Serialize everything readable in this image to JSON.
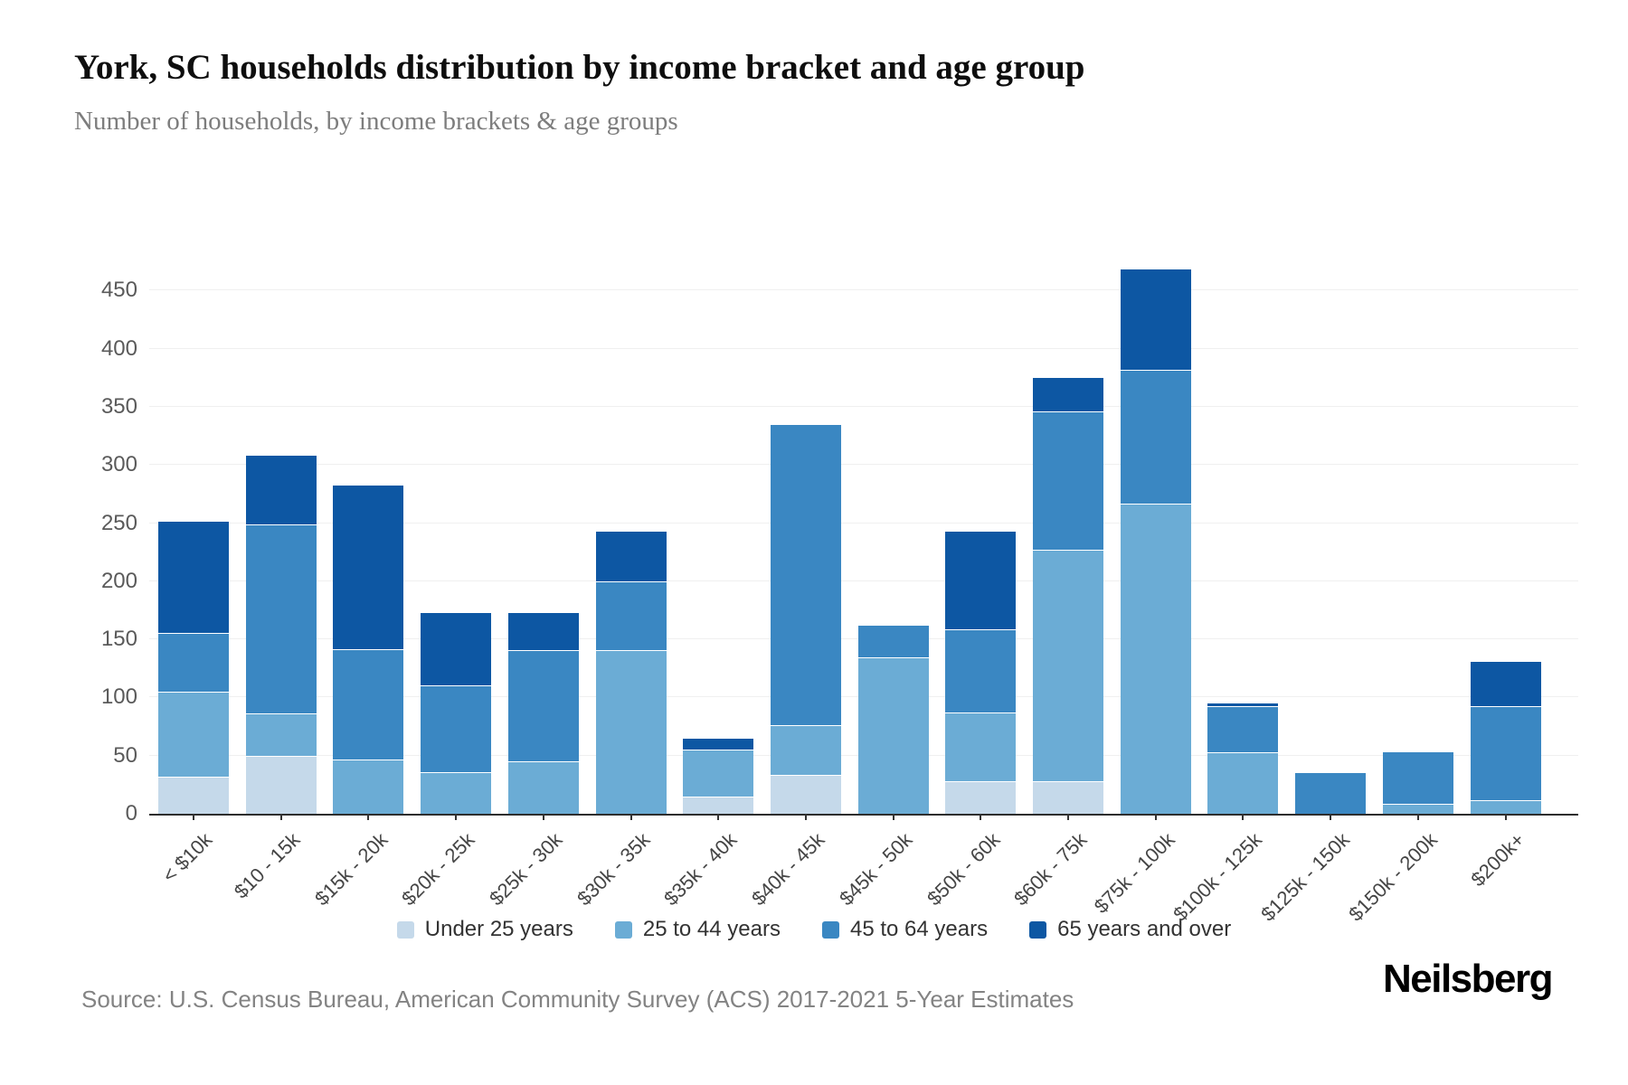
{
  "header": {
    "title": "York, SC households distribution by income bracket and age group",
    "subtitle": "Number of households, by income brackets & age groups"
  },
  "chart_data": {
    "type": "bar",
    "stacked": true,
    "title": "York, SC households distribution by income bracket and age group",
    "subtitle": "Number of households, by income brackets & age groups",
    "xlabel": "",
    "ylabel": "",
    "categories": [
      "< $10k",
      "$10 - 15k",
      "$15k - 20k",
      "$20k - 25k",
      "$25k - 30k",
      "$30k - 35k",
      "$35k - 40k",
      "$40k - 45k",
      "$45k - 50k",
      "$50k - 60k",
      "$60k - 75k",
      "$75k - 100k",
      "$100k - 125k",
      "$125k - 150k",
      "$150k - 200k",
      "$200k+"
    ],
    "series": [
      {
        "name": "Under 25 years",
        "color": "#c5d9ea",
        "values": [
          31,
          49,
          0,
          0,
          0,
          0,
          14,
          33,
          0,
          27,
          27,
          0,
          0,
          0,
          0,
          0
        ]
      },
      {
        "name": "25 to 44 years",
        "color": "#6bacd5",
        "values": [
          72,
          36,
          46,
          35,
          44,
          140,
          40,
          42,
          134,
          58,
          198,
          266,
          52,
          0,
          8,
          11
        ]
      },
      {
        "name": "45 to 64 years",
        "color": "#3a87c2",
        "values": [
          50,
          162,
          94,
          74,
          95,
          58,
          0,
          258,
          27,
          71,
          118,
          114,
          39,
          35,
          44,
          80
        ]
      },
      {
        "name": "65 years and over",
        "color": "#0d57a3",
        "values": [
          96,
          59,
          141,
          62,
          32,
          43,
          9,
          0,
          0,
          84,
          29,
          86,
          2,
          0,
          0,
          38
        ]
      }
    ],
    "totals": [
      249,
      306,
      281,
      171,
      171,
      241,
      63,
      333,
      161,
      240,
      372,
      466,
      93,
      35,
      52,
      129
    ],
    "ylim": [
      0,
      490
    ],
    "yticks": [
      0,
      50,
      100,
      150,
      200,
      250,
      300,
      350,
      400,
      450
    ],
    "grid": "horizontal",
    "gridline_color": "#f0f0f0",
    "axis_color": "#2d2d2d",
    "legend_position": "bottom"
  },
  "footer": {
    "source": "Source: U.S. Census Bureau, American Community Survey (ACS) 2017-2021 5-Year Estimates",
    "brand": "Neilsberg"
  }
}
